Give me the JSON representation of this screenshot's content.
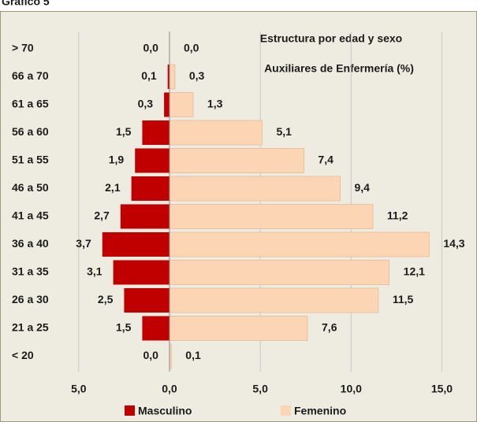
{
  "page_title": "Gráfico 5",
  "chart_data": {
    "type": "pyramid",
    "title": [
      "Estructura por edad y sexo",
      "Auxiliares de Enfermería (%)"
    ],
    "categories": [
      "> 70",
      "66 a 70",
      "61 a 65",
      "56 a 60",
      "51 a 55",
      "46 a 50",
      "41 a 45",
      "36 a 40",
      "31 a 35",
      "26 a 30",
      "21 a 25",
      "< 20"
    ],
    "series": [
      {
        "name": "Masculino",
        "color": "#c00000",
        "values": [
          0,
          -0.1,
          -0.3,
          -1.5,
          -1.9,
          -2.1,
          -2.7,
          -3.7,
          -3.1,
          -2.5,
          -1.5,
          0
        ],
        "value_labels": [
          "0,0",
          "0,1",
          "0,3",
          "1,5",
          "1,9",
          "2,1",
          "2,7",
          "3,7",
          "3,1",
          "2,5",
          "1,5",
          "0,0"
        ]
      },
      {
        "name": "Femenino",
        "color": "#fcd5b4",
        "values": [
          0,
          0.3,
          1.3,
          5.1,
          7.4,
          9.4,
          11.2,
          14.3,
          12.1,
          11.5,
          7.6,
          0.1
        ],
        "value_labels": [
          "0,0",
          "0,3",
          "1,3",
          "5,1",
          "7,4",
          "9,4",
          "11,2",
          "14,3",
          "12,1",
          "11,5",
          "7,6",
          "0,1"
        ]
      }
    ],
    "xlim": [
      -8.9,
      16.5
    ],
    "xticks": [
      {
        "value": -5,
        "label": "5,0"
      },
      {
        "value": 0,
        "label": "0,0"
      },
      {
        "value": 5,
        "label": "5,0"
      },
      {
        "value": 10,
        "label": "10,0"
      },
      {
        "value": 15,
        "label": "15,0"
      }
    ],
    "grid": true
  }
}
